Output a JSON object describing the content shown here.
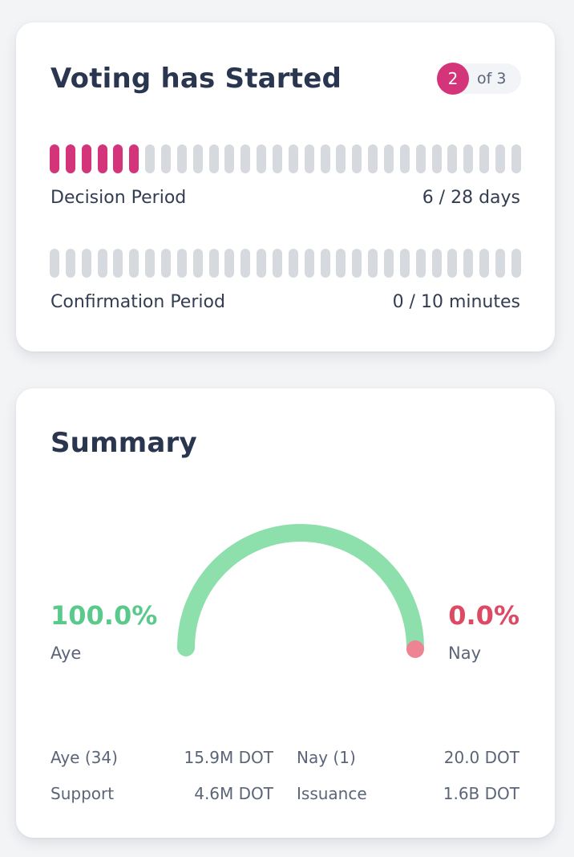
{
  "status": {
    "title": "Voting has Started",
    "step_current": "2",
    "step_total": "of 3",
    "decision": {
      "label": "Decision Period",
      "value": "6 / 28 days",
      "progress_segments_filled": 6,
      "segments_total": 30
    },
    "confirmation": {
      "label": "Confirmation Period",
      "value": "0 / 10 minutes",
      "progress_segments_filled": 0,
      "segments_total": 30
    }
  },
  "summary": {
    "title": "Summary",
    "aye_percent": "100.0%",
    "aye_label": "Aye",
    "nay_percent": "0.0%",
    "nay_label": "Nay",
    "gauge_aye_fraction": 1.0,
    "stats": {
      "aye_count_label": "Aye (34)",
      "aye_amount": "15.9M DOT",
      "nay_count_label": "Nay (1)",
      "nay_amount": "20.0 DOT",
      "support_label": "Support",
      "support_amount": "4.6M DOT",
      "issuance_label": "Issuance",
      "issuance_amount": "1.6B DOT"
    }
  },
  "colors": {
    "accent": "#d43479",
    "aye": "#5cc98c",
    "aye_arc": "#8ddfab",
    "nay": "#dd4a64",
    "nay_dot": "#ee8493",
    "segment_empty": "#d6d9de"
  }
}
